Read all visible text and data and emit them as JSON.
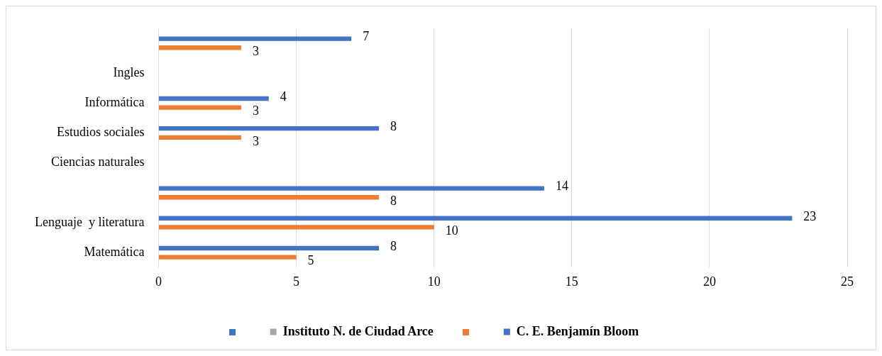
{
  "chart_data": {
    "type": "bar",
    "orientation": "horizontal",
    "categories": [
      null,
      "Ingles",
      "Informática",
      "Estudios sociales",
      "Ciencias naturales",
      null,
      "Lenguaje  y literatura",
      "Matemática"
    ],
    "series": [
      {
        "color": "#4472c4",
        "values": [
          7,
          null,
          4,
          8,
          null,
          14,
          23,
          8
        ]
      },
      {
        "name": "Instituto N. de Ciudad Arce",
        "color": "#a5a5a5",
        "values": [
          null,
          null,
          null,
          null,
          null,
          null,
          null,
          null
        ]
      },
      {
        "color": "#ed7d31",
        "values": [
          3,
          null,
          3,
          3,
          null,
          8,
          10,
          5
        ]
      },
      {
        "name": "C. E. Benjamín Bloom",
        "color": "#4472c4",
        "values": [
          null,
          null,
          null,
          null,
          null,
          null,
          null,
          null
        ]
      }
    ],
    "xlim": [
      0,
      25
    ],
    "xticks": [
      0,
      5,
      10,
      15,
      20,
      25
    ],
    "grid": "x",
    "legend": "bottom",
    "data_labels": true
  }
}
